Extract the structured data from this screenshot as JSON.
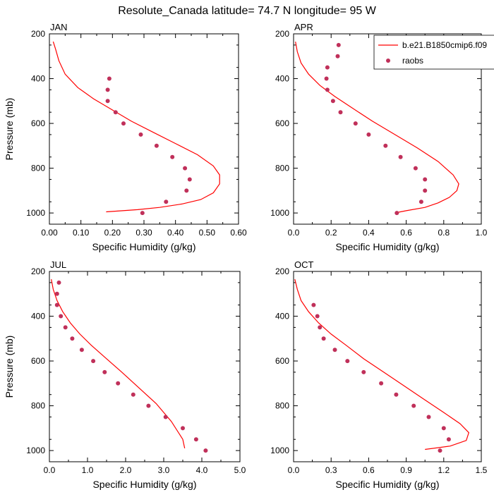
{
  "title": "Resolute_Canada  latitude= 74.7 N longitude= 95 W",
  "colors": {
    "model": "#ff0000",
    "obs": "#c0305a"
  },
  "legend": {
    "position": "top-right",
    "entries": [
      {
        "label": "b.e21.B1850cmip6.f09",
        "kind": "line"
      },
      {
        "label": "raobs",
        "kind": "marker"
      }
    ]
  },
  "chart_data": [
    {
      "type": "line",
      "panel": "JAN",
      "xlabel": "Specific Humidity (g/kg)",
      "ylabel": "Pressure (mb)",
      "xlim": [
        0,
        0.6
      ],
      "ylim": [
        1050,
        200
      ],
      "xticks": [
        "0.00",
        "0.10",
        "0.20",
        "0.30",
        "0.40",
        "0.50",
        "0.60"
      ],
      "xtick_values": [
        0,
        0.1,
        0.2,
        0.3,
        0.4,
        0.5,
        0.6
      ],
      "yticks": [
        200,
        400,
        600,
        800,
        1000
      ],
      "series": [
        {
          "name": "b.e21.B1850cmip6.f09",
          "style": "line",
          "x": [
            0.012,
            0.02,
            0.03,
            0.05,
            0.09,
            0.14,
            0.2,
            0.26,
            0.33,
            0.4,
            0.47,
            0.52,
            0.54,
            0.54,
            0.52,
            0.48,
            0.42,
            0.35,
            0.28,
            0.2,
            0.18
          ],
          "y": [
            235,
            270,
            320,
            380,
            440,
            490,
            540,
            590,
            640,
            690,
            740,
            790,
            830,
            870,
            910,
            940,
            960,
            975,
            985,
            993,
            995
          ]
        },
        {
          "name": "raobs",
          "style": "marker",
          "x": [
            0.19,
            0.185,
            0.185,
            0.21,
            0.235,
            0.29,
            0.34,
            0.39,
            0.43,
            0.445,
            0.435,
            0.37,
            0.295
          ],
          "y": [
            400,
            450,
            500,
            550,
            600,
            650,
            700,
            750,
            800,
            850,
            900,
            950,
            1000
          ]
        }
      ]
    },
    {
      "type": "line",
      "panel": "APR",
      "xlabel": "Specific Humidity (g/kg)",
      "ylabel": "",
      "xlim": [
        0,
        1.0
      ],
      "ylim": [
        1050,
        200
      ],
      "xticks": [
        "0.0",
        "0.2",
        "0.4",
        "0.6",
        "0.8",
        "1.0"
      ],
      "xtick_values": [
        0,
        0.2,
        0.4,
        0.6,
        0.8,
        1.0
      ],
      "yticks": [
        200,
        400,
        600,
        800,
        1000
      ],
      "series": [
        {
          "name": "b.e21.B1850cmip6.f09",
          "style": "line",
          "x": [
            0.01,
            0.02,
            0.04,
            0.08,
            0.14,
            0.22,
            0.31,
            0.42,
            0.54,
            0.66,
            0.77,
            0.85,
            0.88,
            0.87,
            0.83,
            0.77,
            0.7,
            0.6,
            0.55
          ],
          "y": [
            235,
            280,
            330,
            380,
            430,
            480,
            530,
            590,
            650,
            710,
            770,
            830,
            870,
            900,
            930,
            955,
            975,
            990,
            998
          ]
        },
        {
          "name": "raobs",
          "style": "marker",
          "x": [
            0.24,
            0.235,
            0.18,
            0.175,
            0.18,
            0.21,
            0.25,
            0.33,
            0.4,
            0.49,
            0.57,
            0.65,
            0.7,
            0.7,
            0.68,
            0.55
          ],
          "y": [
            250,
            300,
            350,
            400,
            450,
            500,
            550,
            600,
            650,
            700,
            750,
            800,
            850,
            900,
            950,
            1000
          ]
        }
      ]
    },
    {
      "type": "line",
      "panel": "JUL",
      "xlabel": "Specific Humidity (g/kg)",
      "ylabel": "Pressure (mb)",
      "xlim": [
        0,
        5.0
      ],
      "ylim": [
        1050,
        200
      ],
      "xticks": [
        "0.0",
        "1.0",
        "2.0",
        "3.0",
        "4.0",
        "5.0"
      ],
      "xtick_values": [
        0,
        1,
        2,
        3,
        4,
        5
      ],
      "yticks": [
        200,
        400,
        600,
        800,
        1000
      ],
      "series": [
        {
          "name": "b.e21.B1850cmip6.f09",
          "style": "line",
          "x": [
            0.05,
            0.1,
            0.2,
            0.35,
            0.55,
            0.8,
            1.1,
            1.5,
            1.9,
            2.35,
            2.8,
            3.2,
            3.5,
            3.55
          ],
          "y": [
            235,
            280,
            330,
            380,
            430,
            480,
            530,
            590,
            650,
            720,
            790,
            870,
            950,
            990
          ]
        },
        {
          "name": "raobs",
          "style": "marker",
          "x": [
            0.25,
            0.2,
            0.2,
            0.3,
            0.42,
            0.6,
            0.85,
            1.15,
            1.45,
            1.8,
            2.2,
            2.6,
            3.05,
            3.5,
            3.85,
            4.1
          ],
          "y": [
            250,
            300,
            350,
            400,
            450,
            500,
            550,
            600,
            650,
            700,
            750,
            800,
            850,
            900,
            950,
            1000
          ]
        }
      ]
    },
    {
      "type": "line",
      "panel": "OCT",
      "xlabel": "Specific Humidity (g/kg)",
      "ylabel": "",
      "xlim": [
        0,
        1.5
      ],
      "ylim": [
        1050,
        200
      ],
      "xticks": [
        "0.0",
        "0.3",
        "0.6",
        "0.9",
        "1.2",
        "1.5"
      ],
      "xtick_values": [
        0,
        0.3,
        0.6,
        0.9,
        1.2,
        1.5
      ],
      "yticks": [
        200,
        400,
        600,
        800,
        1000
      ],
      "series": [
        {
          "name": "b.e21.B1850cmip6.f09",
          "style": "line",
          "x": [
            0.01,
            0.03,
            0.06,
            0.12,
            0.2,
            0.3,
            0.42,
            0.56,
            0.72,
            0.88,
            1.04,
            1.2,
            1.33,
            1.4,
            1.38,
            1.25,
            1.05
          ],
          "y": [
            235,
            280,
            330,
            380,
            430,
            480,
            530,
            590,
            650,
            710,
            770,
            830,
            880,
            920,
            955,
            980,
            995
          ]
        },
        {
          "name": "raobs",
          "style": "marker",
          "x": [
            0.16,
            0.19,
            0.21,
            0.24,
            0.33,
            0.43,
            0.56,
            0.7,
            0.82,
            0.96,
            1.08,
            1.2,
            1.24,
            1.17
          ],
          "y": [
            350,
            400,
            450,
            500,
            550,
            600,
            650,
            700,
            750,
            800,
            850,
            900,
            950,
            1000
          ]
        }
      ]
    }
  ]
}
